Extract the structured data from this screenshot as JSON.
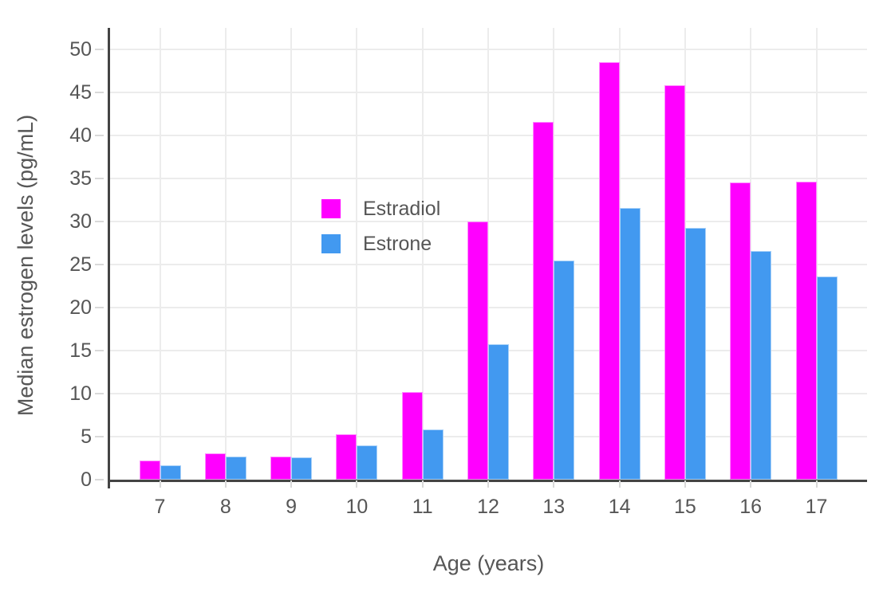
{
  "chart_data": {
    "type": "bar",
    "title": "",
    "xlabel": "Age (years)",
    "ylabel": "Median estrogen levels (pg/mL)",
    "categories": [
      "7",
      "8",
      "9",
      "10",
      "11",
      "12",
      "13",
      "14",
      "15",
      "16",
      "17"
    ],
    "series": [
      {
        "name": "Estradiol",
        "color": "#ff00ff",
        "values": [
          2.2,
          3.1,
          2.7,
          5.3,
          10.2,
          30.0,
          41.6,
          48.5,
          45.8,
          34.5,
          34.6
        ]
      },
      {
        "name": "Estrone",
        "color": "#4299f0",
        "values": [
          1.7,
          2.7,
          2.6,
          4.0,
          5.8,
          15.7,
          25.5,
          31.6,
          29.3,
          26.6,
          23.6
        ]
      }
    ],
    "yticks": [
      0,
      5,
      10,
      15,
      20,
      25,
      30,
      35,
      40,
      45,
      50
    ],
    "ylim": [
      0,
      52.5
    ],
    "grid": true,
    "legend_position": "inside-top-left",
    "axis_color": "#444444",
    "grid_color": "#ececec",
    "text_color": "#565656"
  }
}
